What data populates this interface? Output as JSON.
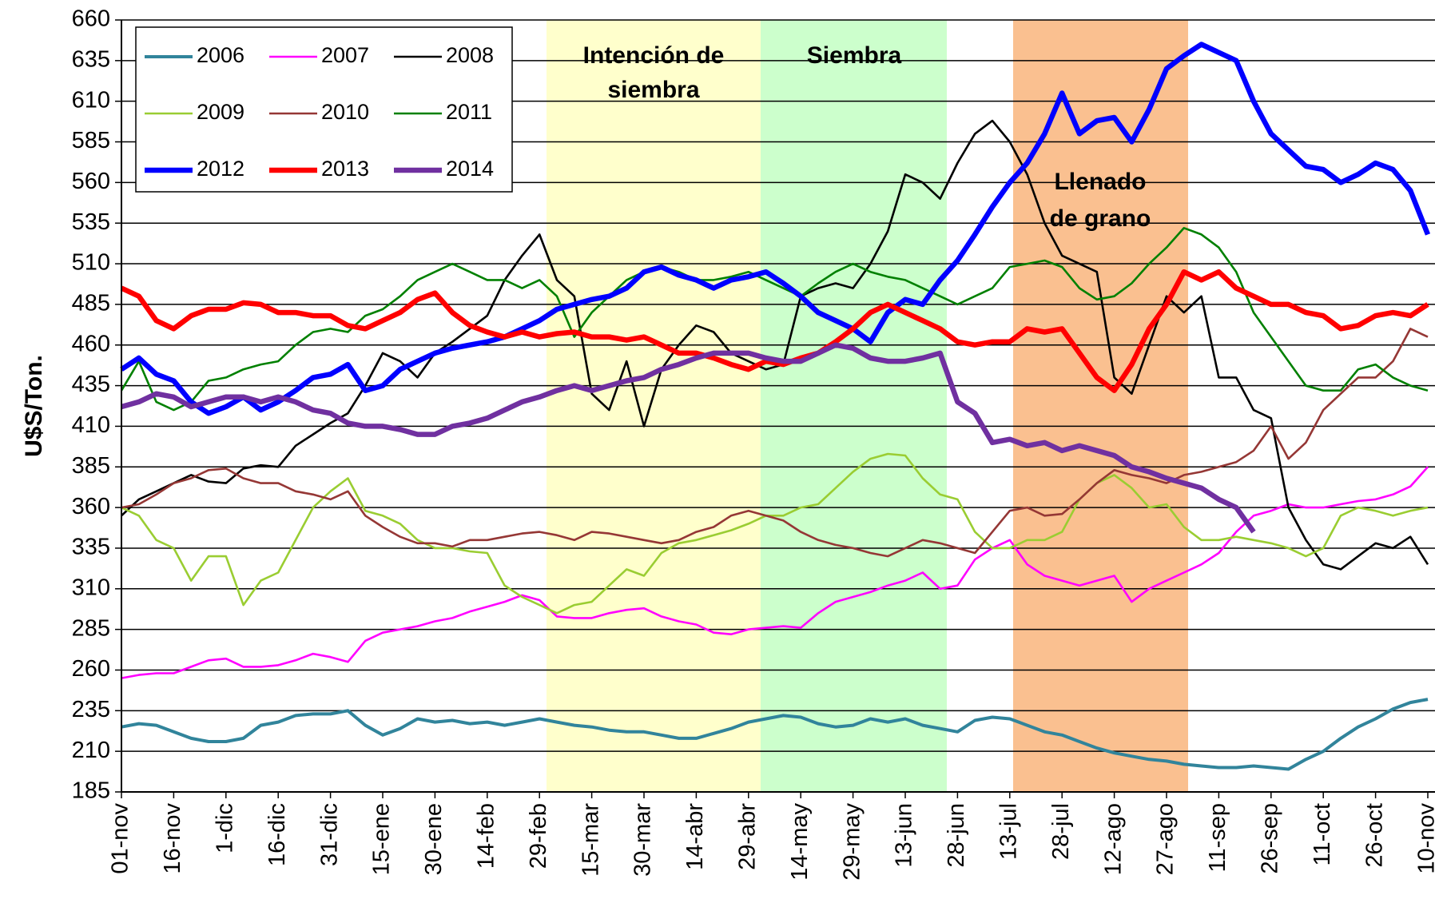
{
  "chart_data": {
    "type": "line",
    "y_label": "U$S/Ton.",
    "ylim": [
      185,
      660
    ],
    "yticks": [
      185,
      210,
      235,
      260,
      285,
      310,
      335,
      360,
      385,
      410,
      435,
      460,
      485,
      510,
      535,
      560,
      585,
      610,
      635,
      660
    ],
    "grid": true,
    "legend": "top-left",
    "phases": [
      {
        "label": [
          "Intención de",
          "siembra"
        ],
        "color": "#FFFFCC"
      },
      {
        "label": [
          "Siembra"
        ],
        "color": "#CCFFCC"
      },
      {
        "label": [
          "Llenado",
          "de grano"
        ],
        "color": "#FAC090"
      }
    ],
    "categories": [
      "01-nov",
      null,
      null,
      "16-nov",
      null,
      null,
      "1-dic",
      null,
      null,
      "16-dic",
      null,
      null,
      "31-dic",
      null,
      null,
      "15-ene",
      null,
      null,
      "30-ene",
      null,
      null,
      "14-feb",
      null,
      null,
      "29-feb",
      null,
      null,
      "15-mar",
      null,
      null,
      "30-mar",
      null,
      null,
      "14-abr",
      null,
      null,
      "29-abr",
      null,
      null,
      "14-may",
      null,
      null,
      "29-may",
      null,
      null,
      "13-jun",
      null,
      null,
      "28-jun",
      null,
      null,
      "13-jul",
      null,
      null,
      "28-jul",
      null,
      null,
      "12-ago",
      null,
      null,
      "27-ago",
      null,
      null,
      "11-sep",
      null,
      null,
      "26-sep",
      null,
      null,
      "11-oct",
      null,
      null,
      "26-oct",
      null,
      null,
      "10-nov"
    ],
    "series": [
      {
        "name": "2006",
        "color": "#31849B",
        "line_style": "medium",
        "values": [
          225,
          227,
          226,
          222,
          218,
          216,
          216,
          218,
          226,
          228,
          232,
          233,
          233,
          235,
          226,
          220,
          224,
          230,
          228,
          229,
          227,
          228,
          226,
          228,
          230,
          228,
          226,
          225,
          223,
          222,
          222,
          220,
          218,
          218,
          221,
          224,
          228,
          230,
          232,
          231,
          227,
          225,
          226,
          230,
          228,
          230,
          226,
          224,
          222,
          229,
          231,
          230,
          226,
          222,
          220,
          216,
          212,
          209,
          207,
          205,
          204,
          202,
          201,
          200,
          200,
          201,
          200,
          199,
          205,
          210,
          218,
          225,
          230,
          236,
          240,
          242
        ]
      },
      {
        "name": "2007",
        "color": "#FF00FF",
        "line_style": "thin",
        "values": [
          255,
          257,
          258,
          258,
          262,
          266,
          267,
          262,
          262,
          263,
          266,
          270,
          268,
          265,
          278,
          283,
          285,
          287,
          290,
          292,
          296,
          299,
          302,
          306,
          303,
          293,
          292,
          292,
          295,
          297,
          298,
          293,
          290,
          288,
          283,
          282,
          285,
          286,
          287,
          286,
          295,
          302,
          305,
          308,
          312,
          315,
          320,
          310,
          312,
          328,
          335,
          340,
          325,
          318,
          315,
          312,
          315,
          318,
          302,
          310,
          315,
          320,
          325,
          332,
          345,
          355,
          358,
          362,
          360,
          360,
          362,
          364,
          365,
          368,
          373,
          385
        ]
      },
      {
        "name": "2008",
        "color": "#000000",
        "line_style": "thin",
        "values": [
          355,
          365,
          370,
          375,
          380,
          376,
          375,
          384,
          386,
          385,
          398,
          405,
          412,
          418,
          435,
          455,
          450,
          440,
          455,
          462,
          470,
          478,
          500,
          515,
          528,
          500,
          490,
          430,
          420,
          450,
          410,
          445,
          460,
          472,
          468,
          455,
          450,
          445,
          448,
          490,
          495,
          498,
          495,
          510,
          530,
          565,
          560,
          550,
          572,
          590,
          598,
          585,
          565,
          535,
          515,
          510,
          505,
          440,
          430,
          460,
          490,
          480,
          490,
          440,
          440,
          420,
          415,
          360,
          340,
          325,
          322,
          330,
          338,
          335,
          342,
          325
        ]
      },
      {
        "name": "2009",
        "color": "#9ACD32",
        "line_style": "thin",
        "values": [
          360,
          355,
          340,
          335,
          315,
          330,
          330,
          300,
          315,
          320,
          340,
          360,
          370,
          378,
          358,
          355,
          350,
          340,
          335,
          335,
          333,
          332,
          312,
          305,
          300,
          295,
          300,
          302,
          312,
          322,
          318,
          332,
          338,
          340,
          343,
          346,
          350,
          355,
          355,
          360,
          362,
          372,
          382,
          390,
          393,
          392,
          378,
          368,
          365,
          345,
          335,
          335,
          340,
          340,
          345,
          365,
          375,
          380,
          372,
          360,
          362,
          348,
          340,
          340,
          342,
          340,
          338,
          335,
          330,
          335,
          355,
          360,
          358,
          355,
          358,
          360
        ]
      },
      {
        "name": "2010",
        "color": "#953735",
        "line_style": "thin",
        "values": [
          360,
          362,
          368,
          375,
          378,
          383,
          384,
          378,
          375,
          375,
          370,
          368,
          365,
          370,
          355,
          348,
          342,
          338,
          338,
          336,
          340,
          340,
          342,
          344,
          345,
          343,
          340,
          345,
          344,
          342,
          340,
          338,
          340,
          345,
          348,
          355,
          358,
          355,
          352,
          345,
          340,
          337,
          335,
          332,
          330,
          335,
          340,
          338,
          335,
          332,
          345,
          358,
          360,
          355,
          356,
          365,
          375,
          383,
          380,
          378,
          375,
          380,
          382,
          385,
          388,
          395,
          410,
          390,
          400,
          420,
          430,
          440,
          440,
          450,
          470,
          465
        ]
      },
      {
        "name": "2011",
        "color": "#008000",
        "line_style": "thin",
        "values": [
          432,
          450,
          425,
          420,
          425,
          438,
          440,
          445,
          448,
          450,
          460,
          468,
          470,
          468,
          478,
          482,
          490,
          500,
          505,
          510,
          505,
          500,
          500,
          495,
          500,
          490,
          465,
          480,
          490,
          500,
          505,
          508,
          505,
          500,
          500,
          502,
          505,
          500,
          495,
          490,
          498,
          505,
          510,
          505,
          502,
          500,
          495,
          490,
          485,
          490,
          495,
          508,
          510,
          512,
          508,
          495,
          488,
          490,
          498,
          510,
          520,
          532,
          528,
          520,
          505,
          480,
          465,
          450,
          435,
          432,
          432,
          445,
          448,
          440,
          435,
          432
        ]
      },
      {
        "name": "2012",
        "color": "#0000FF",
        "line_style": "thick",
        "values": [
          445,
          452,
          442,
          438,
          425,
          418,
          422,
          428,
          420,
          425,
          432,
          440,
          442,
          448,
          432,
          435,
          445,
          450,
          455,
          458,
          460,
          462,
          465,
          470,
          475,
          482,
          485,
          488,
          490,
          495,
          505,
          508,
          503,
          500,
          495,
          500,
          502,
          505,
          498,
          490,
          480,
          475,
          470,
          462,
          480,
          488,
          485,
          500,
          512,
          528,
          545,
          560,
          572,
          590,
          615,
          590,
          598,
          600,
          585,
          605,
          630,
          638,
          645,
          640,
          635,
          610,
          590,
          580,
          570,
          568,
          560,
          565,
          572,
          568,
          555,
          528
        ]
      },
      {
        "name": "2013",
        "color": "#FF0000",
        "line_style": "thick",
        "values": [
          495,
          490,
          475,
          470,
          478,
          482,
          482,
          486,
          485,
          480,
          480,
          478,
          478,
          472,
          470,
          475,
          480,
          488,
          492,
          480,
          472,
          468,
          465,
          468,
          465,
          467,
          468,
          465,
          465,
          463,
          465,
          460,
          455,
          455,
          452,
          448,
          445,
          450,
          448,
          452,
          455,
          462,
          470,
          480,
          485,
          480,
          475,
          470,
          462,
          460,
          462,
          462,
          470,
          468,
          470,
          455,
          440,
          432,
          448,
          470,
          485,
          505,
          500,
          505,
          495,
          490,
          485,
          485,
          480,
          478,
          470,
          472,
          478,
          480,
          478,
          485
        ]
      },
      {
        "name": "2014",
        "color": "#7030A0",
        "line_style": "thick",
        "values": [
          422,
          425,
          430,
          428,
          422,
          425,
          428,
          428,
          425,
          428,
          425,
          420,
          418,
          412,
          410,
          410,
          408,
          405,
          405,
          410,
          412,
          415,
          420,
          425,
          428,
          432,
          435,
          432,
          435,
          438,
          440,
          445,
          448,
          452,
          455,
          455,
          455,
          452,
          450,
          450,
          455,
          460,
          458,
          452,
          450,
          450,
          452,
          455,
          425,
          418,
          400,
          402,
          398,
          400,
          395,
          398,
          395,
          392,
          385,
          382,
          378,
          375,
          372,
          365,
          360,
          345,
          null,
          null,
          null,
          null,
          null,
          null,
          null,
          null,
          null,
          null
        ]
      }
    ]
  }
}
